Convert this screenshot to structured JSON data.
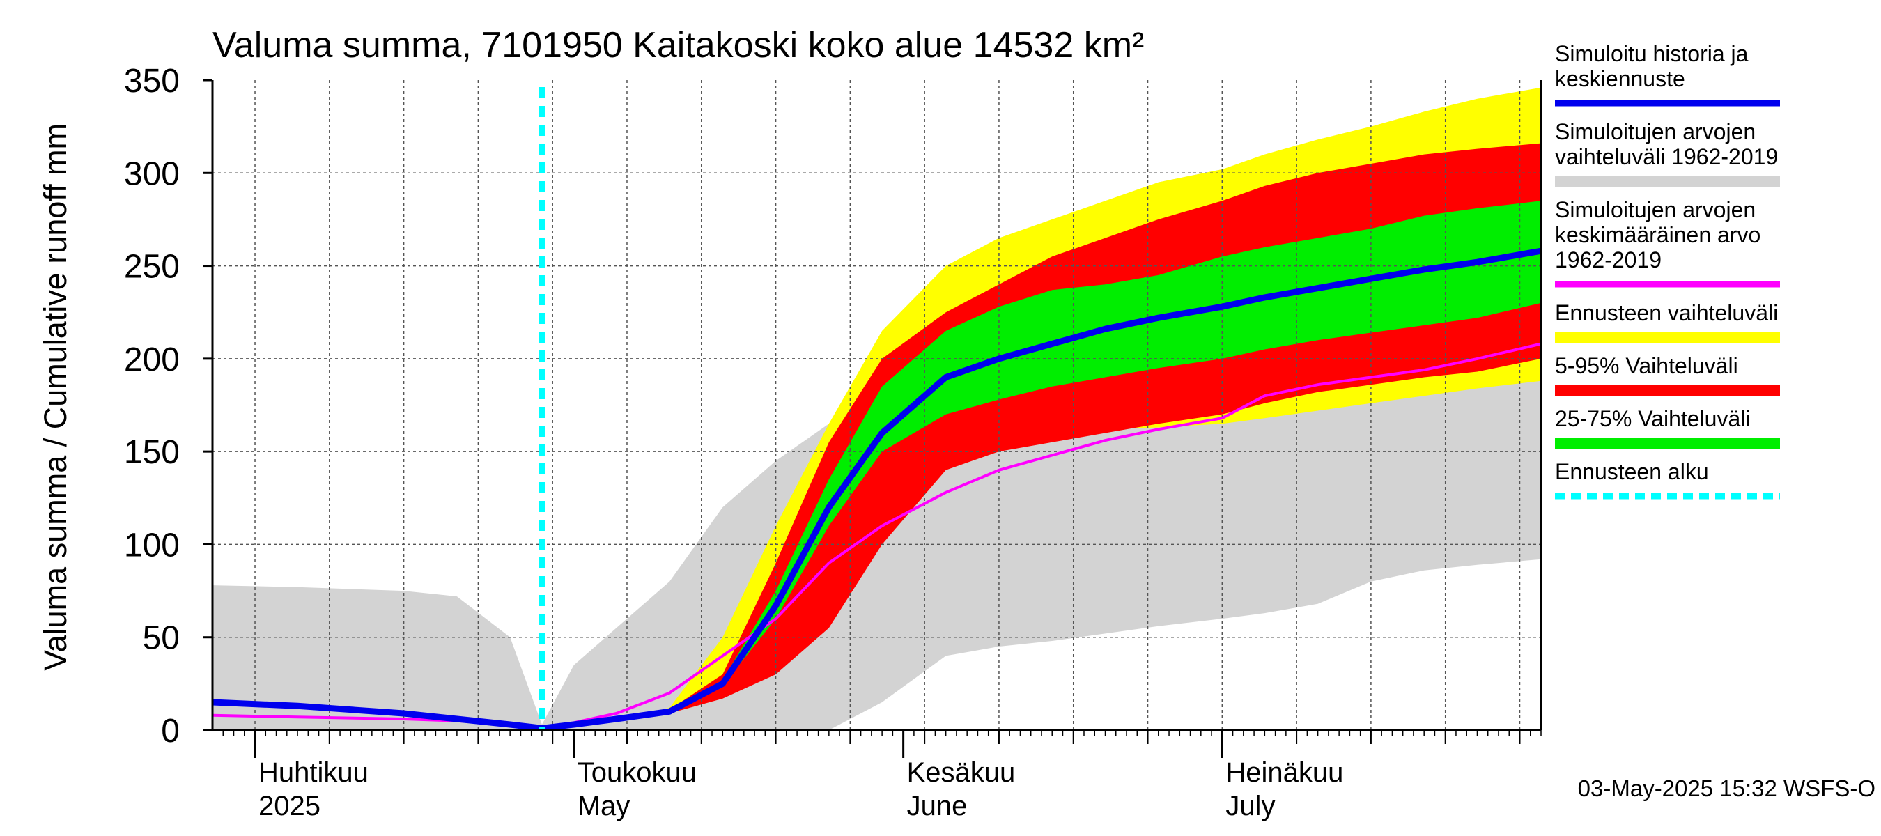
{
  "chart_data": {
    "type": "area",
    "title": "Valuma summa, 7101950 Kaitakoski koko alue 14532 km²",
    "ylabel": "Valuma summa / Cumulative runoff    mm",
    "ylim": [
      0,
      350
    ],
    "yticks": [
      0,
      50,
      100,
      150,
      200,
      250,
      300,
      350
    ],
    "xlim": [
      "2025-03-28",
      "2025-07-31"
    ],
    "grid": true,
    "legend_position": "right",
    "month_labels": [
      {
        "date": "2025-04-01",
        "fi": "Huhtikuu",
        "en": "2025"
      },
      {
        "date": "2025-05-01",
        "fi": "Toukokuu",
        "en": "May"
      },
      {
        "date": "2025-06-01",
        "fi": "Kesäkuu",
        "en": "June"
      },
      {
        "date": "2025-07-01",
        "fi": "Heinäkuu",
        "en": "July"
      }
    ],
    "forecast_start": "2025-04-28",
    "timestamp": "03-May-2025 15:32 WSFS-O",
    "legend": [
      {
        "key": "sim",
        "label": [
          "Simuloitu historia ja",
          "keskiennuste"
        ],
        "color": "#0000ee",
        "style": "line"
      },
      {
        "key": "hist_range",
        "label": [
          "Simuloitujen arvojen",
          "vaihteluväli 1962-2019"
        ],
        "color": "#d3d3d3",
        "style": "band"
      },
      {
        "key": "hist_mean",
        "label": [
          "Simuloitujen arvojen",
          "keskimääräinen arvo",
          "   1962-2019"
        ],
        "color": "#ff00ff",
        "style": "line"
      },
      {
        "key": "fc_range",
        "label": [
          "Ennusteen vaihteluväli"
        ],
        "color": "#ffff00",
        "style": "band"
      },
      {
        "key": "p5_95",
        "label": [
          "5-95% Vaihteluväli"
        ],
        "color": "#ff0000",
        "style": "band"
      },
      {
        "key": "p25_75",
        "label": [
          "25-75% Vaihteluväli"
        ],
        "color": "#00ee00",
        "style": "band"
      },
      {
        "key": "fc_start",
        "label": [
          "Ennusteen alku"
        ],
        "color": "#00ffff",
        "style": "dashed"
      }
    ],
    "x": [
      "2025-03-28",
      "2025-04-05",
      "2025-04-15",
      "2025-04-20",
      "2025-04-25",
      "2025-04-28",
      "2025-05-01",
      "2025-05-05",
      "2025-05-10",
      "2025-05-15",
      "2025-05-20",
      "2025-05-25",
      "2025-05-30",
      "2025-06-05",
      "2025-06-10",
      "2025-06-15",
      "2025-06-20",
      "2025-06-25",
      "2025-07-01",
      "2025-07-05",
      "2025-07-10",
      "2025-07-15",
      "2025-07-20",
      "2025-07-25",
      "2025-07-31"
    ],
    "series": [
      {
        "key": "hist_range",
        "low": [
          0,
          0,
          0,
          0,
          0,
          0,
          0,
          0,
          0,
          0,
          0,
          0,
          15,
          40,
          45,
          48,
          52,
          56,
          60,
          63,
          68,
          80,
          86,
          89,
          92
        ],
        "high": [
          78,
          77,
          75,
          72,
          50,
          3,
          35,
          55,
          80,
          120,
          145,
          165,
          200,
          235,
          250,
          265,
          280,
          295,
          302,
          308,
          315,
          320,
          325,
          328,
          330
        ]
      },
      {
        "key": "fc_range",
        "low": [
          null,
          null,
          null,
          null,
          null,
          0,
          3,
          6,
          10,
          22,
          45,
          80,
          115,
          143,
          152,
          158,
          162,
          163,
          165,
          168,
          172,
          176,
          180,
          184,
          188
        ],
        "high": [
          null,
          null,
          null,
          null,
          null,
          0,
          3,
          6,
          12,
          50,
          110,
          165,
          215,
          250,
          265,
          275,
          285,
          295,
          302,
          310,
          318,
          325,
          333,
          340,
          346
        ]
      },
      {
        "key": "p5_95",
        "low": [
          null,
          null,
          null,
          null,
          null,
          0,
          3,
          6,
          9,
          17,
          30,
          55,
          100,
          140,
          150,
          155,
          160,
          165,
          170,
          176,
          182,
          186,
          190,
          193,
          200
        ],
        "high": [
          null,
          null,
          null,
          null,
          null,
          0,
          3,
          6,
          11,
          30,
          90,
          155,
          200,
          225,
          240,
          255,
          265,
          275,
          285,
          293,
          300,
          305,
          310,
          313,
          316
        ]
      },
      {
        "key": "p25_75",
        "low": [
          null,
          null,
          null,
          null,
          null,
          0,
          3,
          6,
          10,
          24,
          60,
          110,
          150,
          170,
          178,
          185,
          190,
          195,
          200,
          205,
          210,
          214,
          218,
          222,
          230
        ],
        "high": [
          null,
          null,
          null,
          null,
          null,
          0,
          3,
          6,
          10,
          27,
          75,
          135,
          185,
          215,
          228,
          237,
          240,
          245,
          255,
          260,
          265,
          270,
          277,
          281,
          285
        ]
      },
      {
        "key": "sim",
        "values": [
          15,
          13,
          9,
          6,
          3,
          1,
          3,
          6,
          10,
          25,
          67,
          120,
          160,
          190,
          200,
          208,
          216,
          222,
          228,
          233,
          238,
          243,
          248,
          252,
          258
        ]
      },
      {
        "key": "hist_mean",
        "values": [
          8,
          7,
          6,
          5,
          3,
          1,
          4,
          9,
          20,
          40,
          60,
          90,
          110,
          128,
          140,
          148,
          156,
          162,
          168,
          180,
          186,
          190,
          194,
          200,
          208
        ]
      }
    ]
  }
}
